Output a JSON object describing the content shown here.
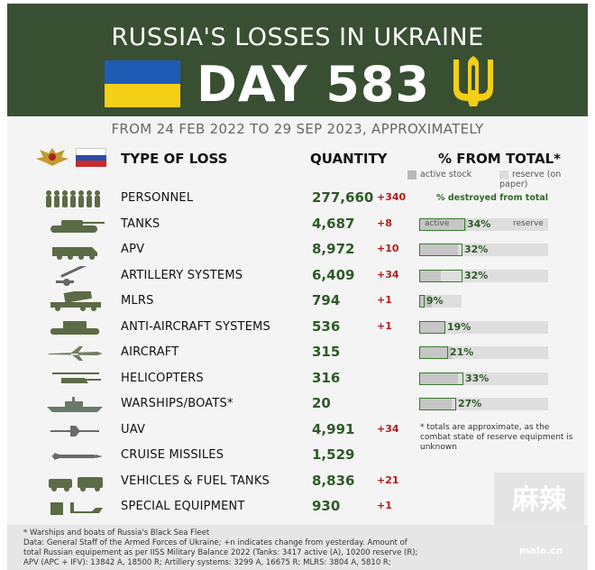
{
  "header": {
    "title": "RUSSIA'S LOSSES IN UKRAINE",
    "day": "DAY 583",
    "period": "FROM 24 FEB 2022 TO 29 SEP 2023, APPROXIMATELY"
  },
  "columns": {
    "type": "TYPE OF LOSS",
    "quantity": "QUANTITY",
    "percent": "% FROM TOTAL*",
    "legend_active": "active stock",
    "legend_reserve": "reserve (on paper)",
    "destroyed_note": "% destroyed from total",
    "tag_active": "active",
    "tag_reserve": "reserve"
  },
  "rows": [
    {
      "label": "PERSONNEL",
      "qty": "277,660",
      "change": "+340",
      "icon": "soldiers-icon"
    },
    {
      "label": "TANKS",
      "qty": "4,687",
      "change": "+8",
      "icon": "tank-icon",
      "pct": "34%",
      "pct_value": 0.34,
      "active": 0.37,
      "reserve": 1.0
    },
    {
      "label": "APV",
      "qty": "8,972",
      "change": "+10",
      "icon": "apv-icon",
      "pct": "32%",
      "pct_value": 0.32,
      "active": 0.3,
      "reserve": 1.0
    },
    {
      "label": "ARTILLERY SYSTEMS",
      "qty": "6,409",
      "change": "+34",
      "icon": "artillery-icon",
      "pct": "32%",
      "pct_value": 0.32,
      "active": 0.17,
      "reserve": 1.0
    },
    {
      "label": "MLRS",
      "qty": "794",
      "change": "+1",
      "icon": "mlrs-icon",
      "pct": "9%",
      "pct_value": 0.09,
      "active": 0.1,
      "reserve": 0.33
    },
    {
      "label": "ANTI-AIRCRAFT SYSTEMS",
      "qty": "536",
      "change": "+1",
      "icon": "anti-aircraft-icon",
      "pct": "19%",
      "pct_value": 0.19,
      "active": 0.2,
      "reserve": 1.0
    },
    {
      "label": "AIRCRAFT",
      "qty": "315",
      "change": "",
      "icon": "aircraft-icon",
      "pct": "21%",
      "pct_value": 0.21,
      "active": 0.25,
      "reserve": 1.0
    },
    {
      "label": "HELICOPTERS",
      "qty": "316",
      "change": "",
      "icon": "helicopter-icon",
      "pct": "33%",
      "pct_value": 0.33,
      "active": 0.3,
      "reserve": 1.0
    },
    {
      "label": "WARSHIPS/BOATS*",
      "qty": "20",
      "change": "",
      "icon": "warship-icon",
      "pct": "27%",
      "pct_value": 0.27,
      "active": 0.25,
      "reserve": 1.0
    },
    {
      "label": "UAV",
      "qty": "4,991",
      "change": "+34",
      "icon": "uav-icon"
    },
    {
      "label": "CRUISE MISSILES",
      "qty": "1,529",
      "change": "",
      "icon": "cruise-missile-icon"
    },
    {
      "label": "VEHICLES & FUEL TANKS",
      "qty": "8,836",
      "change": "+21",
      "icon": "vehicles-icon"
    },
    {
      "label": "SPECIAL EQUIPMENT",
      "qty": "930",
      "change": "+1",
      "icon": "special-equipment-icon"
    }
  ],
  "note": "* totals are approximate, as the combat state of reserve equipment is unknown",
  "footer": {
    "line1": "* Warships and boats of Russia's Black Sea Fleet",
    "line2": "Data: General Staff of the Armed Forces of Ukraine; +n indicates change from yesterday. Amount of",
    "line3": "total Russian equipement as per IISS Military Balance 2022 (Tanks: 3417 active (A), 10200 reserve (R);",
    "line4": "APV (APC + IFV): 13842 A, 18500 R; Artillery systems: 3299 A, 16675 R; MLRS: 3804 A, 5810 R;"
  },
  "watermark": "mala.cn",
  "colors": {
    "header": "#394f32",
    "accent": "#2f5a28",
    "change": "#b21b1b",
    "blue": "#1f5bb5",
    "yellow": "#f3cf17"
  }
}
